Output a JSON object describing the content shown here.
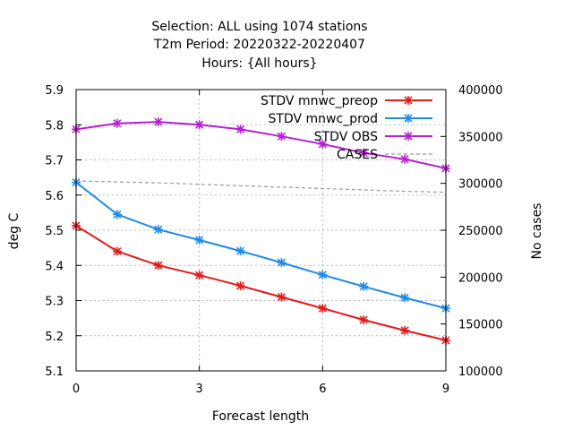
{
  "chart_data": {
    "type": "line",
    "title_lines": [
      "Selection: ALL using  1074 stations",
      "T2m   Period: 20220322-20220407",
      "Hours: {All hours}"
    ],
    "xlabel": "Forecast length",
    "ylabel": "deg C",
    "y2label": "No cases",
    "x_ticks": [
      0,
      3,
      6,
      9
    ],
    "y_ticks": [
      "5.1",
      "5.2",
      "5.3",
      "5.4",
      "5.5",
      "5.6",
      "5.7",
      "5.8",
      "5.9"
    ],
    "y2_ticks": [
      "100000",
      "150000",
      "200000",
      "250000",
      "300000",
      "350000",
      "400000"
    ],
    "xlim": [
      0,
      9
    ],
    "ylim": [
      5.1,
      5.9
    ],
    "y2lim": [
      100000,
      400000
    ],
    "grid": true,
    "legend_position": "top-right",
    "x": [
      0,
      1,
      2,
      3,
      4,
      5,
      6,
      7,
      8,
      9
    ],
    "series": [
      {
        "name": "STDV mnwc_preop",
        "color": "#e41a1c",
        "axis": "left",
        "values": [
          5.513,
          5.44,
          5.4,
          5.372,
          5.342,
          5.31,
          5.278,
          5.245,
          5.215,
          5.187
        ]
      },
      {
        "name": "STDV mnwc_prod",
        "color": "#1f8be8",
        "axis": "left",
        "values": [
          5.636,
          5.545,
          5.502,
          5.472,
          5.441,
          5.408,
          5.373,
          5.34,
          5.308,
          5.278
        ]
      },
      {
        "name": "STDV OBS",
        "color": "#b51fd1",
        "axis": "left",
        "values": [
          5.787,
          5.804,
          5.808,
          5.8,
          5.787,
          5.767,
          5.745,
          5.72,
          5.702,
          5.676
        ]
      },
      {
        "name": "CASES",
        "color": "#999999",
        "axis": "right",
        "dashed": true,
        "values": [
          302500,
          301500,
          300500,
          299000,
          297500,
          296000,
          294500,
          293000,
          291500,
          290500
        ]
      }
    ]
  }
}
